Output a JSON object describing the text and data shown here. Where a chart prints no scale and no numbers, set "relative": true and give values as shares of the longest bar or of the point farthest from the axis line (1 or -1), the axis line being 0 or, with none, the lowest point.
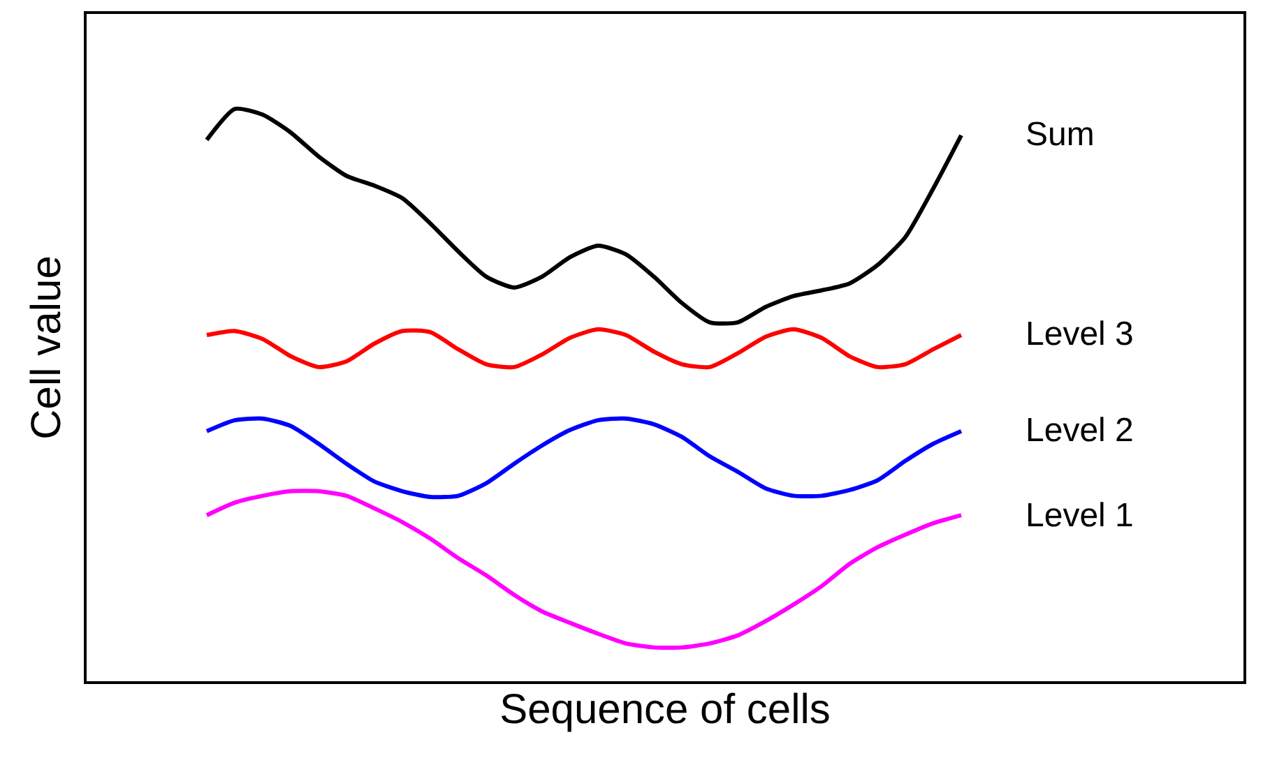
{
  "chart_data": {
    "type": "line",
    "relative": true,
    "xlabel": "Sequence of cells",
    "ylabel": "Cell value",
    "tick_labels": false,
    "categories": [
      null,
      null,
      null,
      null,
      null,
      null,
      null,
      null,
      null,
      null,
      null,
      null,
      null,
      null,
      null,
      null,
      null,
      null,
      null,
      null,
      null,
      null,
      null,
      null,
      null,
      null,
      null,
      null
    ],
    "series": [
      {
        "name": "Sum",
        "color": "#000000",
        "values": [
          0.946,
          1,
          0.99,
          0.959,
          0.917,
          0.883,
          0.866,
          0.844,
          0.8,
          0.751,
          0.707,
          0.688,
          0.707,
          0.741,
          0.761,
          0.746,
          0.707,
          0.661,
          0.627,
          0.627,
          0.654,
          0.673,
          0.683,
          0.695,
          0.727,
          0.776,
          0.861,
          0.954
        ]
      },
      {
        "name": "Level 3",
        "color": "#ff0000",
        "values": [
          0.605,
          0.612,
          0.598,
          0.568,
          0.549,
          0.559,
          0.59,
          0.612,
          0.61,
          0.58,
          0.554,
          0.549,
          0.571,
          0.6,
          0.615,
          0.605,
          0.576,
          0.554,
          0.549,
          0.573,
          0.602,
          0.615,
          0.6,
          0.568,
          0.549,
          0.554,
          0.58,
          0.605
        ]
      },
      {
        "name": "Level 2",
        "color": "#0000ff",
        "values": [
          0.437,
          0.456,
          0.459,
          0.446,
          0.415,
          0.38,
          0.349,
          0.332,
          0.322,
          0.324,
          0.346,
          0.38,
          0.412,
          0.439,
          0.456,
          0.459,
          0.449,
          0.427,
          0.393,
          0.366,
          0.337,
          0.324,
          0.324,
          0.334,
          0.351,
          0.385,
          0.415,
          0.437
        ]
      },
      {
        "name": "Level 1",
        "color": "#ff00ff",
        "values": [
          0.29,
          0.312,
          0.324,
          0.332,
          0.332,
          0.324,
          0.302,
          0.278,
          0.249,
          0.215,
          0.185,
          0.151,
          0.122,
          0.102,
          0.083,
          0.066,
          0.059,
          0.059,
          0.066,
          0.08,
          0.105,
          0.134,
          0.166,
          0.205,
          0.234,
          0.256,
          0.276,
          0.29
        ]
      }
    ]
  }
}
